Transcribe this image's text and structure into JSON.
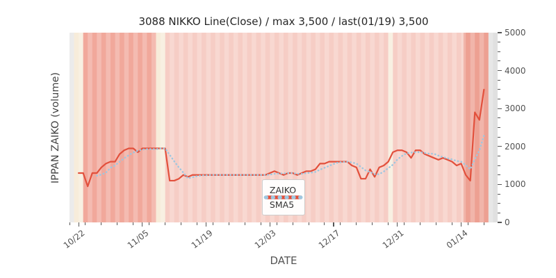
{
  "chart_data": {
    "type": "line",
    "title": "3088 NIKKO Line(Close) / max 3,500 / last(01/19) 3,500",
    "xlabel": "DATE",
    "ylabel": "IPPAN ZAIKO (volume)",
    "ylim": [
      0,
      5000
    ],
    "yticks_major": [
      0,
      1000,
      2000,
      3000,
      4000,
      5000
    ],
    "ytick_minor_step": 250,
    "x_domain_days": [
      0,
      94
    ],
    "x_axis_start_date": "10/20",
    "x_minor_step": 3.5,
    "xticks": [
      {
        "label": "10/22",
        "day": 2
      },
      {
        "label": "11/05",
        "day": 16
      },
      {
        "label": "11/19",
        "day": 30
      },
      {
        "label": "12/03",
        "day": 44
      },
      {
        "label": "12/17",
        "day": 58
      },
      {
        "label": "12/31",
        "day": 72
      },
      {
        "label": "01/14",
        "day": 86
      }
    ],
    "series": [
      {
        "name": "ZAIKO",
        "color": "#e2503c",
        "style": "solid",
        "start_day": 2,
        "date_range": "10/22 - 01/19",
        "values": [
          1300,
          1300,
          950,
          1300,
          1300,
          1450,
          1550,
          1600,
          1600,
          1800,
          1900,
          1950,
          1950,
          1850,
          1950,
          1950,
          1950,
          1950,
          1950,
          1950,
          1100,
          1100,
          1150,
          1250,
          1200,
          1250,
          1250,
          1250,
          1250,
          1250,
          1250,
          1250,
          1250,
          1250,
          1250,
          1250,
          1250,
          1250,
          1250,
          1250,
          1250,
          1250,
          1300,
          1350,
          1300,
          1250,
          1300,
          1300,
          1250,
          1300,
          1350,
          1350,
          1400,
          1550,
          1550,
          1600,
          1600,
          1600,
          1600,
          1600,
          1500,
          1450,
          1150,
          1150,
          1400,
          1200,
          1450,
          1500,
          1600,
          1850,
          1900,
          1900,
          1850,
          1700,
          1900,
          1900,
          1800,
          1750,
          1700,
          1650,
          1700,
          1650,
          1600,
          1500,
          1550,
          1250,
          1100,
          2900,
          2700,
          3500
        ],
        "max": 3500,
        "last_date": "01/19",
        "last_value": 3500
      },
      {
        "name": "SMA5",
        "color": "#9ec7e0",
        "style": "dotted",
        "derived_from": "ZAIKO",
        "window": 5
      }
    ],
    "bands": [
      {
        "from": 0,
        "to": 1,
        "color": "#e6e6e6"
      },
      {
        "from": 1,
        "to": 3,
        "color": "#f7ecda"
      },
      {
        "from": 3,
        "to": 19,
        "color": "#f1a89b"
      },
      {
        "from": 19,
        "to": 21,
        "color": "#f7ecda"
      },
      {
        "from": 21,
        "to": 70,
        "color": "#f6cdc5"
      },
      {
        "from": 70,
        "to": 71,
        "color": "#f7ecda"
      },
      {
        "from": 71,
        "to": 86.5,
        "color": "#f6cdc5"
      },
      {
        "from": 86.5,
        "to": 92,
        "color": "#eda092"
      },
      {
        "from": 92,
        "to": 94,
        "color": "#e0e0e0"
      }
    ],
    "stripe_overlay": "rgba(255,255,255,0.22)",
    "legend": {
      "position": "lower center",
      "entries": [
        {
          "label": "ZAIKO"
        },
        {
          "label": "SMA5"
        }
      ]
    },
    "axis_colors": {
      "tick_label": "#525252",
      "title": "#262626",
      "axis_label": "#444444"
    }
  }
}
